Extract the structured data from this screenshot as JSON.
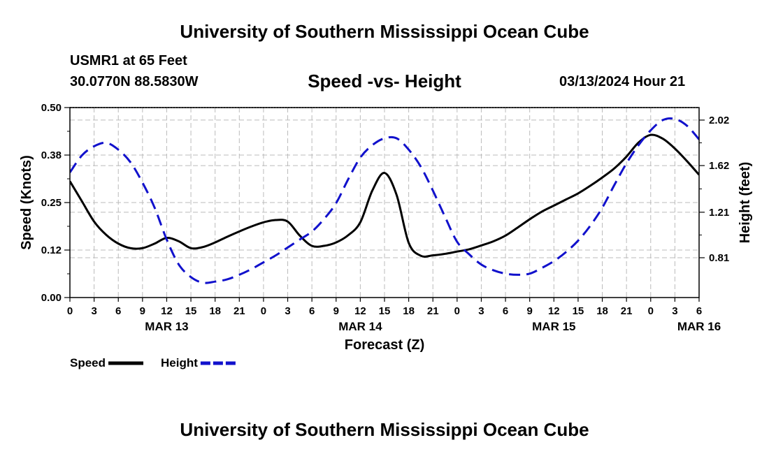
{
  "header": {
    "title": "University of Southern Mississippi Ocean Cube",
    "station": "USMR1 at 65 Feet",
    "coordinates": "30.0770N  88.5830W",
    "subtitle": "Speed -vs- Height",
    "datetime": "03/13/2024 Hour 21"
  },
  "footer": {
    "title": "University of Southern Mississippi Ocean Cube"
  },
  "chart_data": {
    "type": "line",
    "title": "Speed -vs- Height",
    "xlabel": "Forecast (Z)",
    "ylabel_left": "Speed (Knots)",
    "ylabel_right": "Height (feet)",
    "x_unit": "hours since Mar 13 00Z",
    "xlim": [
      0,
      78
    ],
    "ylim_left": [
      0,
      0.5
    ],
    "ylim_right": [
      0.46,
      2.13
    ],
    "left_ticks": [
      {
        "value": 0.0,
        "label": "0.00"
      },
      {
        "value": 0.125,
        "label": "0.12"
      },
      {
        "value": 0.25,
        "label": "0.25"
      },
      {
        "value": 0.375,
        "label": "0.38"
      },
      {
        "value": 0.5,
        "label": "0.50"
      }
    ],
    "right_ticks": [
      {
        "value": 0.81,
        "label": "0.81"
      },
      {
        "value": 1.21,
        "label": "1.21"
      },
      {
        "value": 1.62,
        "label": "1.62"
      },
      {
        "value": 2.02,
        "label": "2.02"
      }
    ],
    "x_ticks": [
      {
        "value": 0,
        "label": "0"
      },
      {
        "value": 3,
        "label": "3"
      },
      {
        "value": 6,
        "label": "6"
      },
      {
        "value": 9,
        "label": "9"
      },
      {
        "value": 12,
        "label": "12"
      },
      {
        "value": 15,
        "label": "15"
      },
      {
        "value": 18,
        "label": "18"
      },
      {
        "value": 21,
        "label": "21"
      },
      {
        "value": 24,
        "label": "0"
      },
      {
        "value": 27,
        "label": "3"
      },
      {
        "value": 30,
        "label": "6"
      },
      {
        "value": 33,
        "label": "9"
      },
      {
        "value": 36,
        "label": "12"
      },
      {
        "value": 39,
        "label": "15"
      },
      {
        "value": 42,
        "label": "18"
      },
      {
        "value": 45,
        "label": "21"
      },
      {
        "value": 48,
        "label": "0"
      },
      {
        "value": 51,
        "label": "3"
      },
      {
        "value": 54,
        "label": "6"
      },
      {
        "value": 57,
        "label": "9"
      },
      {
        "value": 60,
        "label": "12"
      },
      {
        "value": 63,
        "label": "15"
      },
      {
        "value": 66,
        "label": "18"
      },
      {
        "value": 69,
        "label": "21"
      },
      {
        "value": 72,
        "label": "0"
      },
      {
        "value": 75,
        "label": "3"
      },
      {
        "value": 78,
        "label": "6"
      }
    ],
    "date_labels": [
      {
        "value": 12,
        "label": "MAR 13"
      },
      {
        "value": 36,
        "label": "MAR 14"
      },
      {
        "value": 60,
        "label": "MAR 15"
      },
      {
        "value": 78,
        "label": "MAR 16"
      }
    ],
    "grid": true,
    "series": [
      {
        "name": "Speed",
        "axis": "left",
        "color": "#000000",
        "dash": "solid",
        "x": [
          0,
          1.5,
          3,
          4.5,
          6,
          7.5,
          9,
          10.5,
          12,
          13.5,
          15,
          16.5,
          18,
          19.5,
          21,
          22.5,
          24,
          25.5,
          27,
          28.5,
          30,
          31.5,
          33,
          34.5,
          36,
          37.5,
          39,
          40.5,
          42,
          43.5,
          45,
          46.5,
          48,
          49.5,
          51,
          52.5,
          54,
          55.5,
          57,
          58.5,
          60,
          61.5,
          63,
          64.5,
          66,
          67.5,
          69,
          70.5,
          72,
          73.5,
          75,
          76.5,
          78
        ],
        "values": [
          0.306,
          0.253,
          0.2,
          0.165,
          0.142,
          0.13,
          0.13,
          0.142,
          0.157,
          0.148,
          0.13,
          0.133,
          0.145,
          0.16,
          0.174,
          0.187,
          0.198,
          0.204,
          0.2,
          0.163,
          0.136,
          0.136,
          0.145,
          0.164,
          0.198,
          0.282,
          0.328,
          0.27,
          0.144,
          0.11,
          0.111,
          0.115,
          0.121,
          0.127,
          0.137,
          0.148,
          0.163,
          0.184,
          0.206,
          0.226,
          0.242,
          0.258,
          0.274,
          0.294,
          0.316,
          0.34,
          0.371,
          0.408,
          0.428,
          0.418,
          0.392,
          0.359,
          0.323
        ]
      },
      {
        "name": "Height",
        "axis": "right",
        "color": "#1111cc",
        "dash": "dashed",
        "x": [
          0,
          1.5,
          3,
          4.5,
          6,
          7.5,
          9,
          10.5,
          12,
          13.5,
          15,
          16.5,
          18,
          19.5,
          21,
          22.5,
          24,
          25.5,
          27,
          28.5,
          30,
          31.5,
          33,
          34.5,
          36,
          37.5,
          39,
          40.5,
          42,
          43.5,
          45,
          46.5,
          48,
          49.5,
          51,
          52.5,
          54,
          55.5,
          57,
          58.5,
          60,
          61.5,
          63,
          64.5,
          66,
          67.5,
          69,
          70.5,
          72,
          73.5,
          75,
          76.5,
          78
        ],
        "values": [
          1.56,
          1.71,
          1.79,
          1.82,
          1.76,
          1.65,
          1.47,
          1.25,
          0.97,
          0.75,
          0.64,
          0.59,
          0.6,
          0.62,
          0.66,
          0.71,
          0.77,
          0.83,
          0.9,
          0.97,
          1.04,
          1.15,
          1.29,
          1.5,
          1.69,
          1.8,
          1.86,
          1.86,
          1.76,
          1.61,
          1.4,
          1.17,
          0.95,
          0.84,
          0.75,
          0.7,
          0.67,
          0.66,
          0.67,
          0.72,
          0.78,
          0.86,
          0.96,
          1.09,
          1.25,
          1.45,
          1.64,
          1.8,
          1.93,
          2.02,
          2.03,
          1.97,
          1.85
        ]
      }
    ],
    "legend": {
      "position": "bottom-left",
      "entries": [
        {
          "label": "Speed",
          "color": "#000000",
          "dash": "solid"
        },
        {
          "label": "Height",
          "color": "#1111cc",
          "dash": "dashed"
        }
      ]
    }
  }
}
